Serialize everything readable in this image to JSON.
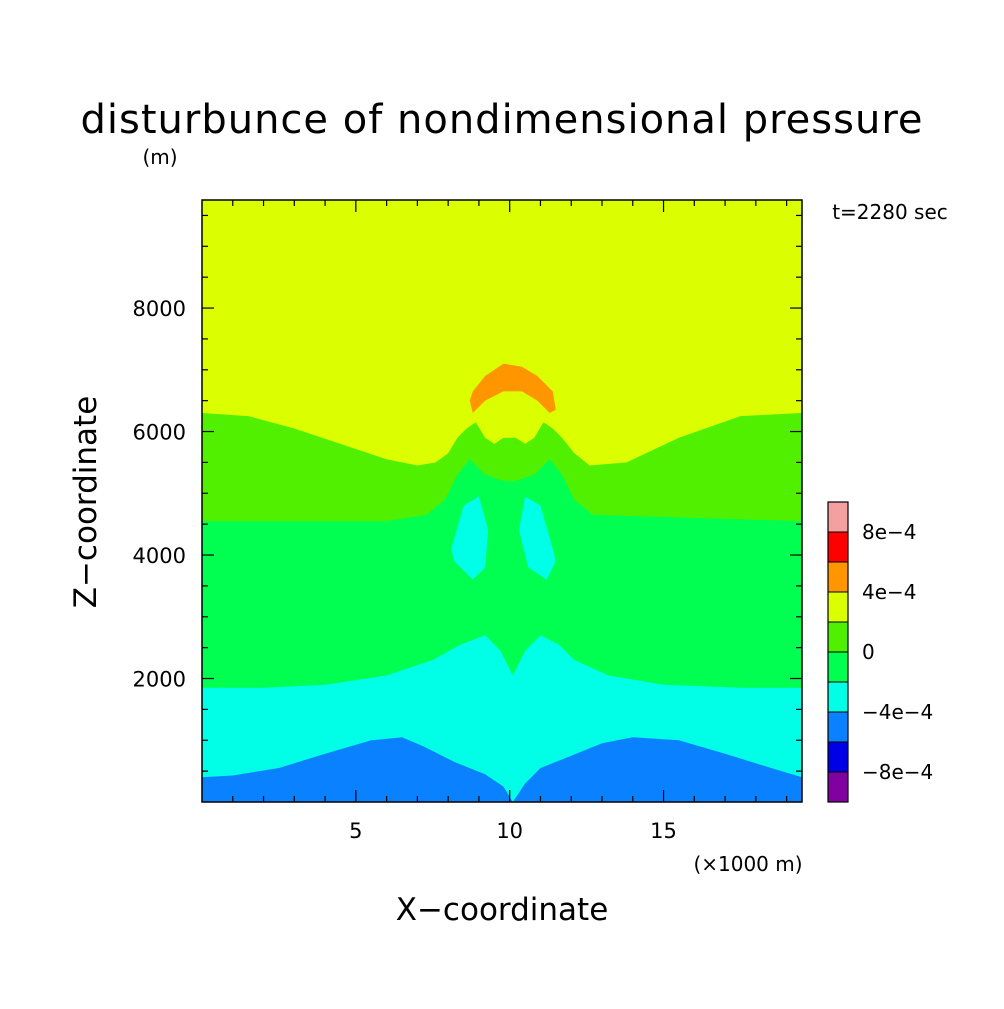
{
  "chart_data": {
    "type": "heatmap",
    "title": "disturbunce of nondimensional pressure",
    "y_unit": "(m)",
    "time_label": "t=2280 sec",
    "xlabel": "X−coordinate",
    "ylabel": "Z−coordinate",
    "x_unit": "(×1000 m)",
    "xlim": [
      0,
      19.5
    ],
    "ylim": [
      0,
      9750
    ],
    "x_ticks": [
      5,
      10,
      15
    ],
    "x_tick_labels": [
      "5",
      "10",
      "15"
    ],
    "y_ticks": [
      2000,
      4000,
      6000,
      8000
    ],
    "y_tick_labels": [
      "2000",
      "4000",
      "6000",
      "8000"
    ],
    "colorbar": {
      "levels": [
        -0.001,
        -0.0008,
        -0.0006,
        -0.0004,
        -0.0002,
        0,
        0.0002,
        0.0004,
        0.0006,
        0.0008,
        0.001
      ],
      "colors": [
        "#8000a0",
        "#0000e6",
        "#0a82ff",
        "#00ffe6",
        "#00ff50",
        "#50f000",
        "#dcff00",
        "#ff9600",
        "#ff0000",
        "#f5a0a0"
      ],
      "labels": [
        {
          "value": 0.0008,
          "text": "8e−4"
        },
        {
          "value": 0.0004,
          "text": "4e−4"
        },
        {
          "value": 0,
          "text": "0"
        },
        {
          "value": -0.0004,
          "text": "−4e−4"
        },
        {
          "value": -0.0008,
          "text": "−8e−4"
        }
      ]
    },
    "regions": [
      {
        "level": "dcff00",
        "value_range": [
          0.0002,
          0.0004
        ],
        "outline_x": [
          0,
          19.5,
          19.5,
          0
        ],
        "outline_z": [
          9750,
          9750,
          0,
          0
        ]
      },
      {
        "level": "50f000",
        "value_range": [
          0,
          0.0002
        ],
        "outline_x": [
          0,
          1.5,
          3,
          4.5,
          6,
          7,
          7.6,
          8,
          8.3,
          8.6,
          8.9,
          9.2,
          9.5,
          9.8,
          10.2,
          10.5,
          10.8,
          11.1,
          11.4,
          11.7,
          12.1,
          12.6,
          13.8,
          15.5,
          17.5,
          19.5,
          19.5,
          0
        ],
        "outline_z": [
          6300,
          6250,
          6050,
          5800,
          5550,
          5450,
          5500,
          5650,
          5900,
          6050,
          6150,
          5900,
          5800,
          5900,
          5900,
          5800,
          5900,
          6150,
          6050,
          5900,
          5650,
          5450,
          5500,
          5900,
          6250,
          6300,
          0,
          0
        ]
      },
      {
        "level": "00ff50",
        "value_range": [
          -0.0002,
          0
        ],
        "outline_x": [
          0,
          6,
          7.3,
          7.9,
          8.3,
          8.7,
          9.2,
          9.8,
          10.2,
          10.8,
          11.3,
          11.7,
          12.1,
          12.7,
          19.5,
          19.5,
          0
        ],
        "outline_z": [
          4550,
          4550,
          4650,
          4900,
          5300,
          5550,
          5300,
          5200,
          5200,
          5300,
          5550,
          5300,
          4900,
          4650,
          4550,
          0,
          0
        ]
      },
      {
        "level": "00ff50",
        "value_range": [
          -0.0002,
          0
        ],
        "outline_x": [
          0,
          19.5,
          19.5,
          0
        ],
        "outline_z": [
          3450,
          3450,
          0,
          0
        ]
      },
      {
        "level": "00ffe6",
        "value_range": [
          -0.0004,
          -0.0002
        ],
        "outline_x": [
          0,
          2,
          4,
          6,
          7.5,
          8.4,
          9.2,
          9.7,
          10.1,
          10.5,
          11,
          11.6,
          12.1,
          13.2,
          15,
          17.5,
          19.5,
          19.5,
          0
        ],
        "outline_z": [
          1850,
          1850,
          1900,
          2050,
          2300,
          2550,
          2700,
          2450,
          2050,
          2450,
          2700,
          2550,
          2300,
          2050,
          1900,
          1850,
          1850,
          0,
          0
        ]
      },
      {
        "level": "0a82ff",
        "value_range": [
          -0.0006,
          -0.0004
        ],
        "outline_x": [
          0,
          1,
          2.5,
          4,
          5.5,
          6.5,
          7.2,
          8.2,
          9.2,
          9.8,
          10.1,
          10.5,
          11,
          12,
          13,
          14,
          15.5,
          17,
          18.5,
          19.5,
          19.5,
          0
        ],
        "outline_z": [
          400,
          430,
          550,
          780,
          1000,
          1050,
          900,
          650,
          450,
          250,
          0,
          300,
          550,
          750,
          950,
          1050,
          1000,
          780,
          550,
          400,
          0,
          0
        ]
      },
      {
        "level": "00ffe6",
        "value_range": [
          -0.0004,
          -0.0002
        ],
        "outline_x": [
          8.1,
          8.5,
          9.0,
          9.3,
          9.2,
          8.8,
          8.2
        ],
        "outline_z": [
          4100,
          4800,
          4950,
          4400,
          3800,
          3600,
          3900
        ]
      },
      {
        "level": "00ffe6",
        "value_range": [
          -0.0004,
          -0.0002
        ],
        "outline_x": [
          11.4,
          11.0,
          10.5,
          10.3,
          10.6,
          11.2,
          11.5
        ],
        "outline_z": [
          4100,
          4800,
          4950,
          4400,
          3800,
          3600,
          3900
        ]
      },
      {
        "level": "ff9600",
        "value_range": [
          0.0004,
          0.0006
        ],
        "outline_x": [
          8.8,
          9.2,
          9.8,
          10.4,
          10.9,
          11.4,
          11.5,
          11.3,
          10.9,
          10.4,
          9.8,
          9.2,
          8.8,
          8.7
        ],
        "outline_z": [
          6650,
          6900,
          7100,
          7050,
          6900,
          6650,
          6350,
          6300,
          6500,
          6650,
          6650,
          6500,
          6300,
          6500
        ]
      }
    ]
  }
}
